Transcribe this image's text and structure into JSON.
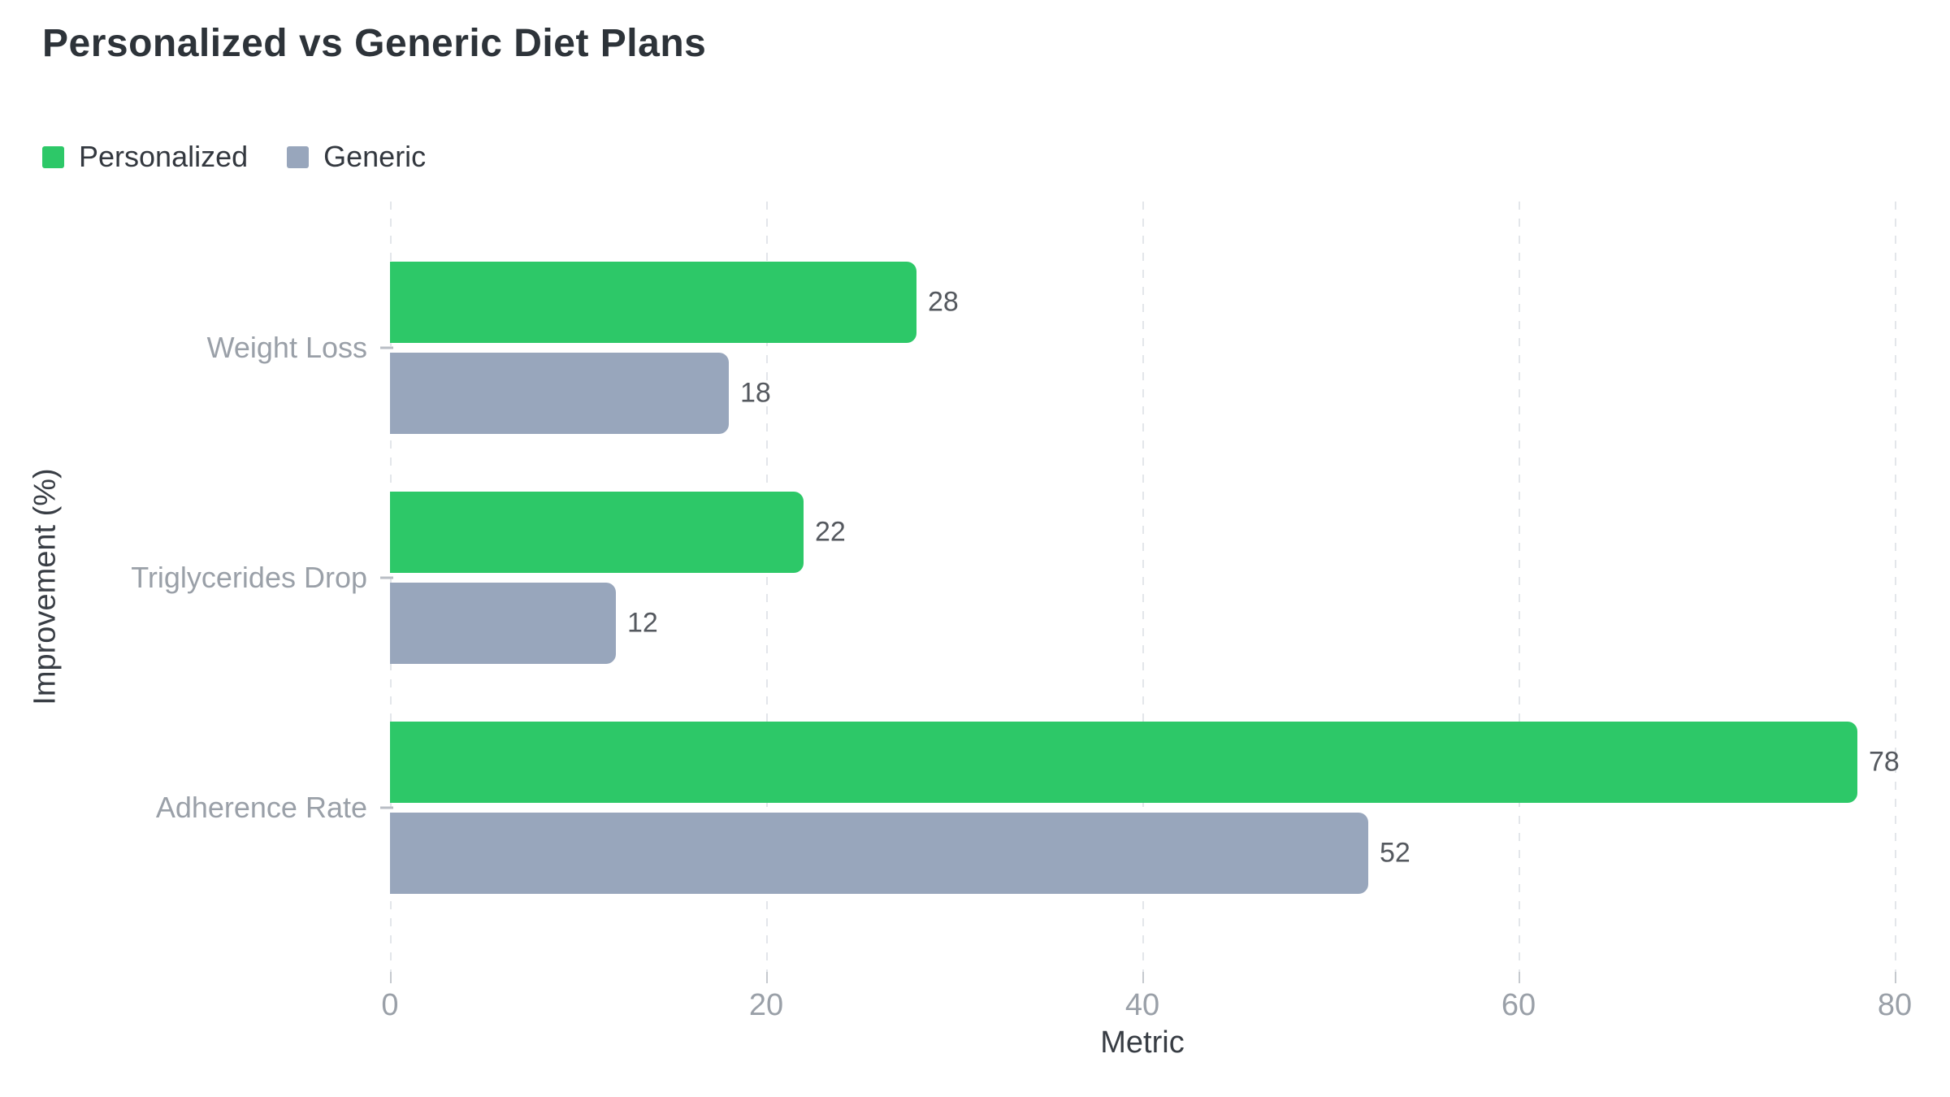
{
  "title": "Personalized vs Generic Diet Plans",
  "legend": {
    "items": [
      {
        "label": "Personalized",
        "color": "#2dc868"
      },
      {
        "label": "Generic",
        "color": "#98a6bc"
      }
    ]
  },
  "chart_data": {
    "type": "bar",
    "orientation": "horizontal",
    "title": "Personalized vs Generic Diet Plans",
    "categories": [
      "Weight Loss",
      "Triglycerides Drop",
      "Adherence Rate"
    ],
    "series": [
      {
        "name": "Personalized",
        "color": "#2dc868",
        "values": [
          28,
          22,
          78
        ]
      },
      {
        "name": "Generic",
        "color": "#98a6bc",
        "values": [
          18,
          12,
          52
        ]
      }
    ],
    "value_labels": [
      "28",
      "18",
      "22",
      "12",
      "78",
      "52"
    ],
    "xlabel": "Metric",
    "ylabel": "Improvement (%)",
    "x_ticks": [
      0,
      20,
      40,
      60,
      80
    ],
    "xlim": [
      0,
      82.5
    ],
    "grid": "vertical-dashed",
    "legend_position": "top-left",
    "background": "#ffffff"
  }
}
